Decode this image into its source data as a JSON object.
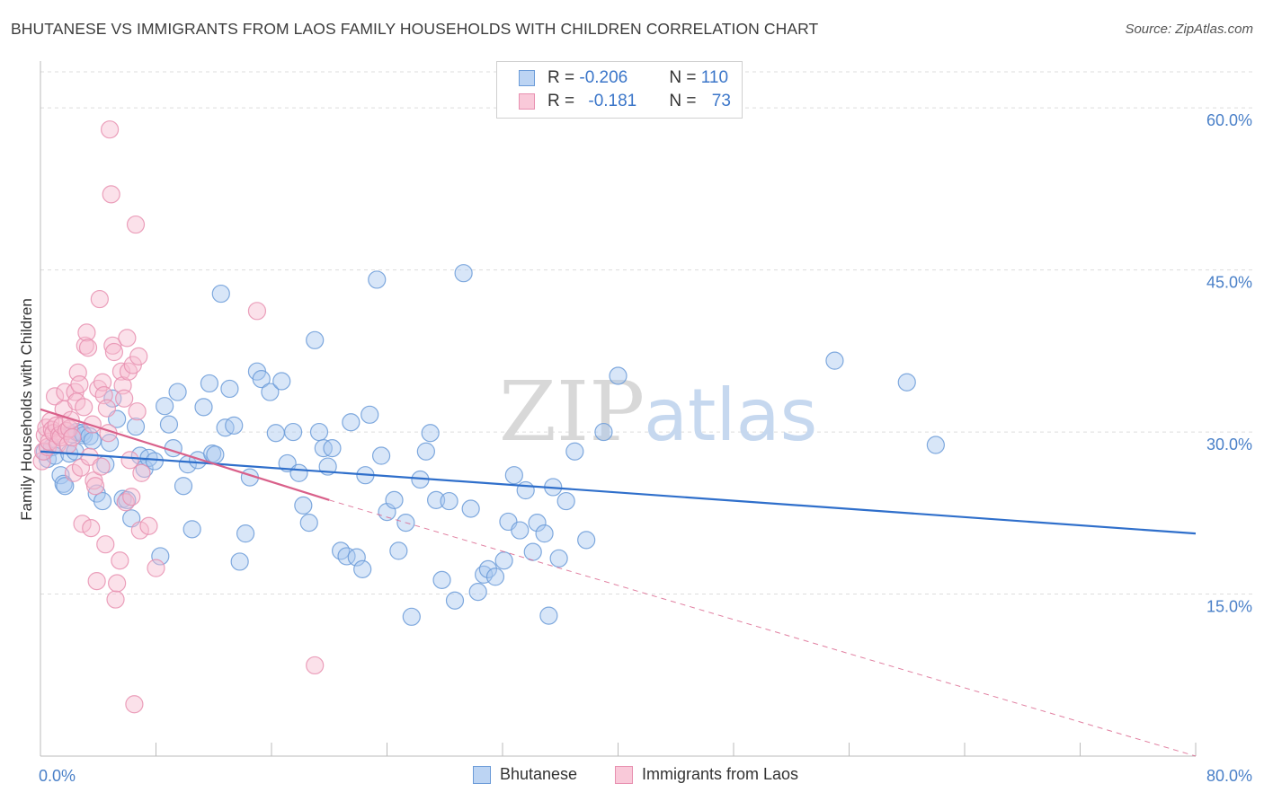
{
  "title": "BHUTANESE VS IMMIGRANTS FROM LAOS FAMILY HOUSEHOLDS WITH CHILDREN CORRELATION CHART",
  "source": "Source: ZipAtlas.com",
  "watermark": {
    "zip": "ZIP",
    "atlas": "atlas"
  },
  "colors": {
    "blue_fill": "#a9c8ef",
    "blue_stroke": "#6b9bd8",
    "blue_line": "#2f6fcb",
    "pink_fill": "#f6bcd0",
    "pink_stroke": "#e890b0",
    "pink_line": "#d9608a",
    "tick_text": "#4a80c8",
    "grid": "#dddddd"
  },
  "legend": {
    "rows": [
      {
        "r_label": "R = ",
        "r_value": "-0.206",
        "n_label": "N = ",
        "n_value": "110"
      },
      {
        "r_label": "R = ",
        "r_value": "-0.181",
        "n_label": "N = ",
        "n_value": "73"
      }
    ]
  },
  "chart_data": {
    "type": "scatter",
    "ylabel": "Family Households with Children",
    "xlim": [
      0,
      80
    ],
    "ylim": [
      0,
      64
    ],
    "x_tick_labels": [
      "0.0%",
      "80.0%"
    ],
    "y_ticks": [
      15,
      30,
      45,
      60
    ],
    "y_tick_labels": [
      "15.0%",
      "30.0%",
      "45.0%",
      "60.0%"
    ],
    "grid": "horizontal dashed",
    "legend_position": "top-center",
    "series": [
      {
        "name": "Bhutanese",
        "points": [
          [
            0.3,
            28.2
          ],
          [
            0.5,
            27.5
          ],
          [
            0.8,
            28.6
          ],
          [
            1.0,
            27.8
          ],
          [
            1.4,
            26.0
          ],
          [
            1.6,
            25.2
          ],
          [
            1.7,
            25.0
          ],
          [
            2.0,
            28.0
          ],
          [
            2.2,
            29.8
          ],
          [
            2.4,
            28.2
          ],
          [
            2.5,
            30.0
          ],
          [
            2.9,
            29.9
          ],
          [
            3.0,
            29.7
          ],
          [
            3.4,
            29.6
          ],
          [
            3.6,
            29.2
          ],
          [
            3.9,
            24.3
          ],
          [
            4.3,
            23.6
          ],
          [
            4.5,
            27.0
          ],
          [
            4.8,
            29.0
          ],
          [
            5.0,
            33.1
          ],
          [
            5.3,
            31.2
          ],
          [
            5.7,
            23.8
          ],
          [
            6.0,
            23.7
          ],
          [
            6.3,
            22.0
          ],
          [
            6.6,
            30.5
          ],
          [
            6.9,
            27.8
          ],
          [
            7.2,
            26.6
          ],
          [
            7.5,
            27.6
          ],
          [
            7.9,
            27.3
          ],
          [
            8.3,
            18.5
          ],
          [
            8.6,
            32.4
          ],
          [
            8.9,
            30.7
          ],
          [
            9.2,
            28.5
          ],
          [
            9.5,
            33.7
          ],
          [
            9.9,
            25.0
          ],
          [
            10.2,
            27.0
          ],
          [
            10.5,
            21.0
          ],
          [
            10.9,
            27.4
          ],
          [
            11.3,
            32.3
          ],
          [
            11.7,
            34.5
          ],
          [
            11.9,
            28.0
          ],
          [
            12.1,
            27.9
          ],
          [
            12.5,
            42.8
          ],
          [
            12.8,
            30.4
          ],
          [
            13.1,
            34.0
          ],
          [
            13.4,
            30.6
          ],
          [
            13.8,
            18.0
          ],
          [
            14.2,
            20.6
          ],
          [
            14.5,
            25.8
          ],
          [
            15.0,
            35.6
          ],
          [
            15.3,
            34.9
          ],
          [
            15.9,
            33.7
          ],
          [
            16.3,
            29.9
          ],
          [
            16.7,
            34.7
          ],
          [
            17.1,
            27.1
          ],
          [
            17.5,
            30.0
          ],
          [
            17.9,
            26.2
          ],
          [
            18.2,
            23.2
          ],
          [
            18.6,
            21.6
          ],
          [
            19.0,
            38.5
          ],
          [
            19.3,
            30.0
          ],
          [
            19.6,
            28.5
          ],
          [
            19.9,
            26.8
          ],
          [
            20.2,
            28.5
          ],
          [
            20.8,
            19.0
          ],
          [
            21.2,
            18.5
          ],
          [
            21.5,
            30.9
          ],
          [
            21.9,
            18.4
          ],
          [
            22.3,
            17.3
          ],
          [
            22.5,
            26.0
          ],
          [
            22.8,
            31.6
          ],
          [
            23.3,
            44.1
          ],
          [
            23.6,
            27.8
          ],
          [
            24.0,
            22.6
          ],
          [
            24.5,
            23.7
          ],
          [
            24.8,
            19.0
          ],
          [
            25.3,
            21.6
          ],
          [
            25.7,
            12.9
          ],
          [
            26.3,
            25.6
          ],
          [
            26.7,
            28.2
          ],
          [
            27.0,
            29.9
          ],
          [
            27.4,
            23.7
          ],
          [
            27.8,
            16.3
          ],
          [
            28.3,
            23.6
          ],
          [
            28.7,
            14.4
          ],
          [
            29.3,
            44.7
          ],
          [
            29.8,
            22.9
          ],
          [
            30.3,
            15.2
          ],
          [
            30.7,
            16.8
          ],
          [
            31.0,
            17.3
          ],
          [
            31.5,
            16.6
          ],
          [
            32.1,
            18.1
          ],
          [
            32.4,
            21.7
          ],
          [
            32.8,
            26.0
          ],
          [
            33.2,
            20.9
          ],
          [
            33.6,
            24.6
          ],
          [
            34.1,
            18.9
          ],
          [
            34.4,
            21.6
          ],
          [
            34.9,
            20.6
          ],
          [
            35.2,
            13.0
          ],
          [
            35.5,
            24.9
          ],
          [
            35.9,
            18.3
          ],
          [
            36.4,
            23.6
          ],
          [
            37.0,
            28.2
          ],
          [
            37.8,
            20.0
          ],
          [
            39.0,
            30.0
          ],
          [
            40.0,
            35.2
          ],
          [
            55.0,
            36.6
          ],
          [
            60.0,
            34.6
          ],
          [
            62.0,
            28.8
          ]
        ]
      },
      {
        "name": "Immigrants from Laos",
        "points": [
          [
            0.1,
            27.3
          ],
          [
            0.2,
            28.2
          ],
          [
            0.3,
            29.7
          ],
          [
            0.4,
            30.4
          ],
          [
            0.5,
            28.6
          ],
          [
            0.6,
            29.1
          ],
          [
            0.7,
            31.0
          ],
          [
            0.8,
            30.2
          ],
          [
            0.9,
            29.9
          ],
          [
            1.0,
            33.3
          ],
          [
            1.1,
            30.6
          ],
          [
            1.2,
            28.9
          ],
          [
            1.3,
            29.7
          ],
          [
            1.4,
            29.5
          ],
          [
            1.5,
            30.6
          ],
          [
            1.6,
            32.1
          ],
          [
            1.7,
            33.7
          ],
          [
            1.8,
            30.1
          ],
          [
            1.9,
            28.8
          ],
          [
            2.0,
            30.3
          ],
          [
            2.1,
            31.1
          ],
          [
            2.2,
            29.5
          ],
          [
            2.3,
            26.2
          ],
          [
            2.4,
            33.7
          ],
          [
            2.5,
            32.8
          ],
          [
            2.6,
            35.5
          ],
          [
            2.7,
            34.4
          ],
          [
            2.8,
            26.7
          ],
          [
            2.9,
            21.5
          ],
          [
            3.0,
            32.3
          ],
          [
            3.1,
            38.0
          ],
          [
            3.2,
            39.2
          ],
          [
            3.3,
            37.8
          ],
          [
            3.4,
            27.7
          ],
          [
            3.5,
            21.1
          ],
          [
            3.6,
            30.7
          ],
          [
            3.7,
            25.5
          ],
          [
            3.8,
            25.0
          ],
          [
            3.9,
            16.2
          ],
          [
            4.0,
            34.0
          ],
          [
            4.1,
            42.3
          ],
          [
            4.2,
            26.8
          ],
          [
            4.3,
            34.6
          ],
          [
            4.4,
            33.4
          ],
          [
            4.5,
            19.6
          ],
          [
            4.6,
            32.2
          ],
          [
            4.7,
            29.9
          ],
          [
            4.8,
            58.0
          ],
          [
            4.9,
            52.0
          ],
          [
            5.0,
            38.0
          ],
          [
            5.1,
            37.4
          ],
          [
            5.2,
            14.5
          ],
          [
            5.3,
            16.0
          ],
          [
            5.5,
            18.1
          ],
          [
            5.6,
            35.6
          ],
          [
            5.7,
            34.3
          ],
          [
            5.8,
            33.1
          ],
          [
            5.9,
            23.5
          ],
          [
            6.0,
            38.7
          ],
          [
            6.1,
            35.6
          ],
          [
            6.2,
            27.4
          ],
          [
            6.3,
            24.0
          ],
          [
            6.4,
            36.2
          ],
          [
            6.5,
            4.8
          ],
          [
            6.6,
            49.2
          ],
          [
            6.7,
            31.9
          ],
          [
            6.8,
            37.0
          ],
          [
            6.9,
            20.9
          ],
          [
            7.0,
            26.2
          ],
          [
            7.5,
            21.3
          ],
          [
            8.0,
            17.4
          ],
          [
            15.0,
            41.2
          ],
          [
            19.0,
            8.4
          ]
        ]
      }
    ],
    "trend_lines": [
      {
        "series": "Bhutanese",
        "x": [
          0,
          80
        ],
        "y": [
          28.2,
          20.6
        ]
      },
      {
        "series": "Immigrants from Laos",
        "x": [
          0,
          20
        ],
        "y": [
          32.1,
          23.7
        ],
        "dashed_extension_to": [
          80,
          0
        ]
      }
    ]
  },
  "bottom_legend": [
    "Bhutanese",
    "Immigrants from Laos"
  ]
}
